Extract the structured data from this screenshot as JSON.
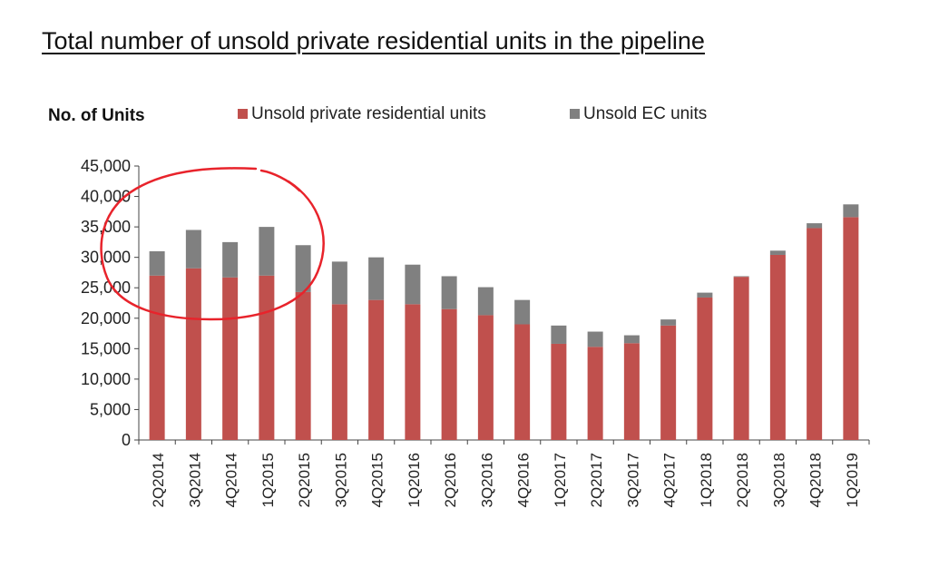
{
  "title": "Total number of unsold private residential units in the pipeline",
  "colors": {
    "private": "#c0504d",
    "ec": "#808080",
    "axis": "#444444",
    "annotation": "#e8232b"
  },
  "chart_data": {
    "type": "bar",
    "stacked": true,
    "ylabel": "No. of Units",
    "xlabel": "",
    "ylim": [
      0,
      45000
    ],
    "yticks": [
      "0",
      "5,000",
      "10,000",
      "15,000",
      "20,000",
      "25,000",
      "30,000",
      "35,000",
      "40,000",
      "45,000"
    ],
    "grid": false,
    "legend_position": "top",
    "categories": [
      "2Q2014",
      "3Q2014",
      "4Q2014",
      "1Q2015",
      "2Q2015",
      "3Q2015",
      "4Q2015",
      "1Q2016",
      "2Q2016",
      "3Q2016",
      "4Q2016",
      "1Q2017",
      "2Q2017",
      "3Q2017",
      "4Q2017",
      "1Q2018",
      "2Q2018",
      "3Q2018",
      "4Q2018",
      "1Q2019"
    ],
    "series": [
      {
        "name": "Unsold private residential units",
        "color": "#c0504d",
        "values": [
          27000,
          28200,
          26700,
          27000,
          24300,
          22300,
          23000,
          22300,
          21500,
          20500,
          19000,
          15800,
          15300,
          15900,
          18800,
          23400,
          26800,
          30400,
          34800,
          36600
        ]
      },
      {
        "name": "Unsold EC units",
        "color": "#808080",
        "values": [
          4000,
          6300,
          5800,
          8000,
          7700,
          7000,
          7000,
          6500,
          5400,
          4600,
          4000,
          3000,
          2500,
          1300,
          1000,
          800,
          100,
          700,
          800,
          2100
        ]
      }
    ],
    "annotations": [
      "hand-drawn red circle around 2Q2014–2Q2015"
    ]
  }
}
